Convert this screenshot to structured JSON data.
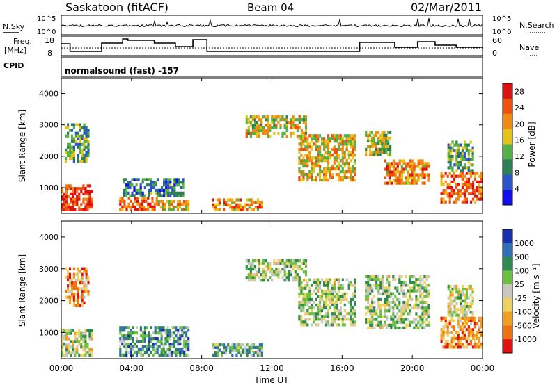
{
  "header": {
    "station": "Saskatoon (fitACF)",
    "beam": "Beam 04",
    "date": "02/Mar/2011"
  },
  "nsky_panel": {
    "left_label": "N.Sky",
    "right_label": "N.Search",
    "left_ticks": [
      "10^5",
      "10^0"
    ],
    "right_ticks": [
      "10^5",
      "10^0"
    ]
  },
  "freq_panel": {
    "left_label_line1": "Freq.",
    "left_label_line2": "[MHz]",
    "right_label": "Nave",
    "left_ticks": [
      "18",
      "8"
    ],
    "right_ticks": [
      "60",
      "0"
    ]
  },
  "cpid": {
    "label": "CPID",
    "value": "normalsound (fast) -157"
  },
  "chart_data": [
    {
      "type": "heatmap",
      "name": "power",
      "xlabel": "Time UT",
      "ylabel": "Slant Range [km]",
      "xlim": [
        0,
        24
      ],
      "ylim": [
        180,
        4500
      ],
      "y_ticks": [
        "1000",
        "2000",
        "3000",
        "4000"
      ],
      "colorbar_label": "Power [dB]",
      "colorbar_ticks": [
        "4",
        "8",
        "12",
        "16",
        "20",
        "24",
        "28"
      ],
      "colorbar_range": [
        0,
        30
      ],
      "colors": [
        "#1010ee",
        "#2a55c8",
        "#2e7f55",
        "#55b045",
        "#e6c21a",
        "#f08a12",
        "#ee5010",
        "#e01010"
      ],
      "echo_regions": [
        {
          "t0": 0.0,
          "t1": 1.8,
          "r0": 250,
          "r1": 1100,
          "level": 0.85
        },
        {
          "t0": 0.2,
          "t1": 1.6,
          "r0": 1800,
          "r1": 3050,
          "level": 0.4
        },
        {
          "t0": 3.3,
          "t1": 5.5,
          "r0": 250,
          "r1": 700,
          "level": 0.75
        },
        {
          "t0": 3.5,
          "t1": 7.0,
          "r0": 700,
          "r1": 1300,
          "level": 0.3
        },
        {
          "t0": 5.5,
          "t1": 7.3,
          "r0": 250,
          "r1": 600,
          "level": 0.6
        },
        {
          "t0": 8.6,
          "t1": 11.5,
          "r0": 250,
          "r1": 650,
          "level": 0.7
        },
        {
          "t0": 10.5,
          "t1": 14.0,
          "r0": 2600,
          "r1": 3300,
          "level": 0.55
        },
        {
          "t0": 13.5,
          "t1": 16.8,
          "r0": 1200,
          "r1": 2700,
          "level": 0.6
        },
        {
          "t0": 17.3,
          "t1": 18.8,
          "r0": 2000,
          "r1": 2800,
          "level": 0.5
        },
        {
          "t0": 18.4,
          "t1": 21.0,
          "r0": 1100,
          "r1": 1900,
          "level": 0.7
        },
        {
          "t0": 21.6,
          "t1": 24.0,
          "r0": 500,
          "r1": 1500,
          "level": 0.8
        },
        {
          "t0": 22.0,
          "t1": 23.5,
          "r0": 1500,
          "r1": 2500,
          "level": 0.4
        }
      ]
    },
    {
      "type": "heatmap",
      "name": "velocity",
      "xlabel": "Time UT",
      "ylabel": "Slant Range [km]",
      "xlim": [
        0,
        24
      ],
      "ylim": [
        180,
        4500
      ],
      "x_ticks": [
        "00:00",
        "04:00",
        "08:00",
        "12:00",
        "16:00",
        "20:00",
        "00:00"
      ],
      "y_ticks": [
        "1000",
        "2000",
        "3000",
        "4000"
      ],
      "colorbar_label": "Velocity [m s⁻¹]",
      "colorbar_ticks": [
        "1000",
        "500",
        "100",
        "25",
        "-25",
        "-100",
        "-500",
        "-1000"
      ],
      "colors": [
        "#1a2fb0",
        "#2e6fb8",
        "#2e8a4e",
        "#6cc040",
        "#c8c8c0",
        "#f0d060",
        "#f0a020",
        "#ee7010",
        "#e01010"
      ],
      "echo_regions": [
        {
          "t0": 0.0,
          "t1": 1.8,
          "r0": 250,
          "r1": 1100,
          "level": 0.5
        },
        {
          "t0": 0.2,
          "t1": 1.6,
          "r0": 1800,
          "r1": 3050,
          "level": 0.75
        },
        {
          "t0": 3.3,
          "t1": 7.3,
          "r0": 250,
          "r1": 1200,
          "level": 0.3
        },
        {
          "t0": 8.6,
          "t1": 11.5,
          "r0": 250,
          "r1": 650,
          "level": 0.35
        },
        {
          "t0": 10.5,
          "t1": 14.0,
          "r0": 2600,
          "r1": 3300,
          "level": 0.45
        },
        {
          "t0": 13.5,
          "t1": 16.8,
          "r0": 1200,
          "r1": 2700,
          "level": 0.45
        },
        {
          "t0": 17.3,
          "t1": 21.0,
          "r0": 1100,
          "r1": 2800,
          "level": 0.45
        },
        {
          "t0": 21.6,
          "t1": 24.0,
          "r0": 500,
          "r1": 1500,
          "level": 0.75
        },
        {
          "t0": 22.0,
          "t1": 23.5,
          "r0": 1500,
          "r1": 2500,
          "level": 0.5
        }
      ]
    }
  ]
}
